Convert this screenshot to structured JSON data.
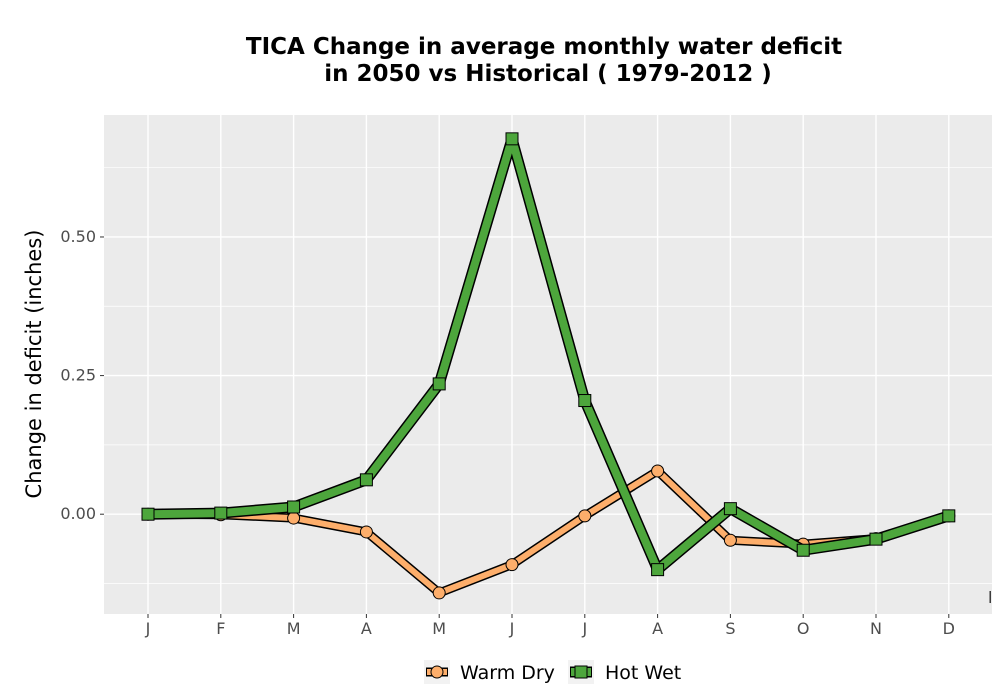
{
  "chart_data": {
    "type": "line",
    "title_lines": [
      "TICA  Change in average monthly water deficit",
      "in 2050 vs Historical ( 1979-2012 )"
    ],
    "xlabel": "",
    "ylabel": "Change in deficit (inches)",
    "categories": [
      "J",
      "F",
      "M",
      "A",
      "M",
      "J",
      "J",
      "A",
      "S",
      "O",
      "N",
      "D"
    ],
    "y_ticks": [
      0.0,
      0.25,
      0.5
    ],
    "y_tick_labels": [
      "0.00",
      "0.25",
      "0.50"
    ],
    "ylim": [
      -0.18,
      0.72
    ],
    "grid": true,
    "legend_position": "bottom",
    "corner_mark": "l",
    "series": [
      {
        "name": "Warm Dry",
        "color": "#FDAE6B",
        "marker": "circle",
        "values": [
          0.0,
          -0.001,
          -0.007,
          -0.032,
          -0.142,
          -0.091,
          -0.003,
          0.078,
          -0.047,
          -0.054,
          -0.044,
          -0.003
        ]
      },
      {
        "name": "Hot Wet",
        "color": "#4DA63C",
        "marker": "square",
        "values": [
          0.0,
          0.002,
          0.013,
          0.062,
          0.235,
          0.677,
          0.205,
          -0.1,
          0.01,
          -0.065,
          -0.045,
          -0.003
        ]
      }
    ]
  }
}
